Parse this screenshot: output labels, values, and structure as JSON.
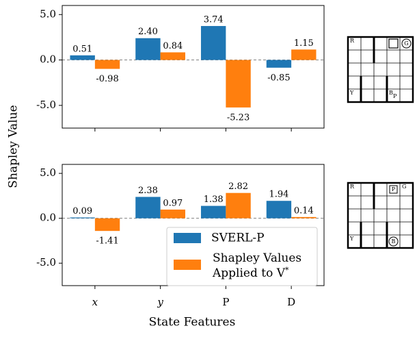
{
  "figure": {
    "ylabel": "Shapley Value",
    "xlabel": "State Features"
  },
  "chart_data": [
    {
      "type": "bar",
      "categories": [
        "x",
        "y",
        "P",
        "D"
      ],
      "category_style": [
        "italic",
        "italic",
        "normal",
        "normal"
      ],
      "ylim": [
        -7.5,
        6.0
      ],
      "yticks": [
        5.0,
        0.0,
        -5.0
      ],
      "ytick_labels": [
        "5.0",
        "0.0",
        "-5.0"
      ],
      "series": [
        {
          "values": [
            0.51,
            2.4,
            3.74,
            -0.85
          ],
          "labels": [
            "0.51",
            "2.40",
            "3.74",
            "-0.85"
          ],
          "color": "#1f77b4"
        },
        {
          "values": [
            -0.98,
            0.84,
            -5.23,
            1.15
          ],
          "labels": [
            "-0.98",
            "0.84",
            "-5.23",
            "1.15"
          ],
          "color": "#ff7f0e"
        }
      ],
      "baseline_color": "#808080",
      "legend": null
    },
    {
      "type": "bar",
      "categories": [
        "x",
        "y",
        "P",
        "D"
      ],
      "category_style": [
        "italic",
        "italic",
        "normal",
        "normal"
      ],
      "ylim": [
        -7.5,
        6.0
      ],
      "yticks": [
        5.0,
        0.0,
        -5.0
      ],
      "ytick_labels": [
        "5.0",
        "0.0",
        "-5.0"
      ],
      "series": [
        {
          "name": "SVERL-P",
          "values": [
            0.09,
            2.38,
            1.38,
            1.94
          ],
          "labels": [
            "0.09",
            "2.38",
            "1.38",
            "1.94"
          ],
          "color": "#1f77b4"
        },
        {
          "name": "Shapley Values Applied to V*",
          "name_lines": [
            "Shapley Values",
            "Applied to V"
          ],
          "name_superscript": "*",
          "values": [
            -1.41,
            0.97,
            2.82,
            0.14
          ],
          "labels": [
            "-1.41",
            "0.97",
            "2.82",
            "0.14"
          ],
          "color": "#ff7f0e"
        }
      ],
      "baseline_color": "#808080",
      "legend": "lower-right"
    }
  ],
  "grids": [
    {
      "rows": 5,
      "cols": 5,
      "cells": [
        {
          "row": 0,
          "col": 0,
          "text": "R"
        },
        {
          "row": 0,
          "col": 3,
          "icon": "square-outline-icon"
        },
        {
          "row": 0,
          "col": 4,
          "text": "G",
          "icon": "circled-letter-icon"
        },
        {
          "row": 4,
          "col": 0,
          "text": "Y"
        },
        {
          "row": 4,
          "col": 3,
          "text": "B",
          "subscript": "P"
        }
      ]
    },
    {
      "rows": 5,
      "cols": 5,
      "cells": [
        {
          "row": 0,
          "col": 0,
          "text": "R"
        },
        {
          "row": 0,
          "col": 3,
          "text": "P",
          "icon": "boxed-letter-icon"
        },
        {
          "row": 0,
          "col": 4,
          "text": "G"
        },
        {
          "row": 4,
          "col": 0,
          "text": "Y"
        },
        {
          "row": 4,
          "col": 3,
          "text": "B",
          "icon": "circled-letter-icon"
        }
      ]
    }
  ]
}
